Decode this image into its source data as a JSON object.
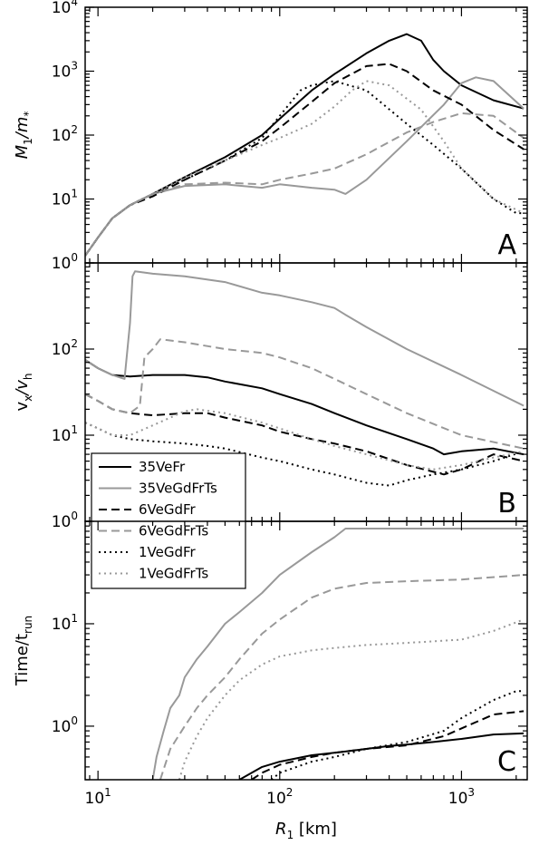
{
  "chart_data": {
    "type": "line",
    "x_scale": "log",
    "xlim": [
      8.5,
      2300
    ],
    "xlabel_main": "R",
    "xlabel_sub": "1",
    "xlabel_unit": "[km]",
    "x_ticks": [
      {
        "value": 10,
        "base": "10",
        "exp": "1"
      },
      {
        "value": 100,
        "base": "10",
        "exp": "2"
      },
      {
        "value": 1000,
        "base": "10",
        "exp": "3"
      }
    ],
    "series_styles": [
      {
        "name": "35VeFr",
        "color": "#000000",
        "dash": "solid"
      },
      {
        "name": "35VeGdFrTs",
        "color": "#999999",
        "dash": "solid"
      },
      {
        "name": "6VeGdFr",
        "color": "#000000",
        "dash": "dashed"
      },
      {
        "name": "6VeGdFrTs",
        "color": "#999999",
        "dash": "dashed"
      },
      {
        "name": "1VeGdFr",
        "color": "#000000",
        "dash": "dotted"
      },
      {
        "name": "1VeGdFrTs",
        "color": "#999999",
        "dash": "dotted"
      }
    ],
    "legend_placement": "bottom-left of panel B",
    "panels": [
      {
        "letter": "A",
        "ylabel_main": "M",
        "ylabel_sub": "1",
        "ylabel_rest": "/m",
        "ylabel_rest_sub": "*",
        "y_scale": "log",
        "ylim": [
          1,
          10000
        ],
        "y_ticks": [
          {
            "value": 1,
            "base": "10",
            "exp": "0"
          },
          {
            "value": 10,
            "base": "10",
            "exp": "1"
          },
          {
            "value": 100,
            "base": "10",
            "exp": "2"
          },
          {
            "value": 1000,
            "base": "10",
            "exp": "3"
          },
          {
            "value": 10000,
            "base": "10",
            "exp": "4"
          }
        ],
        "series": [
          {
            "name": "35VeFr",
            "x": [
              8.5,
              10,
              12,
              15,
              20,
              30,
              50,
              80,
              100,
              150,
              200,
              300,
              400,
              500,
              600,
              700,
              800,
              1000,
              1500,
              2200
            ],
            "y": [
              1.3,
              2.5,
              5,
              8,
              12,
              22,
              45,
              100,
              180,
              500,
              900,
              1900,
              3000,
              3800,
              3000,
              1500,
              1000,
              600,
              350,
              260
            ]
          },
          {
            "name": "35VeGdFrTs",
            "x": [
              8.5,
              10,
              12,
              15,
              20,
              30,
              50,
              80,
              100,
              150,
              200,
              230,
              300,
              500,
              800,
              1000,
              1200,
              1500,
              2200
            ],
            "y": [
              1.3,
              2.5,
              5,
              8,
              12,
              16,
              17,
              15,
              17,
              15,
              14,
              12,
              20,
              80,
              300,
              650,
              800,
              700,
              260
            ]
          },
          {
            "name": "6VeGdFr",
            "x": [
              8.5,
              10,
              12,
              15,
              20,
              30,
              50,
              80,
              100,
              150,
              200,
              300,
              400,
              500,
              700,
              1000,
              1500,
              2200
            ],
            "y": [
              1.3,
              2.5,
              5,
              8,
              11,
              20,
              40,
              80,
              130,
              330,
              650,
              1200,
              1300,
              1000,
              500,
              300,
              120,
              60
            ]
          },
          {
            "name": "6VeGdFrTs",
            "x": [
              8.5,
              10,
              12,
              15,
              20,
              30,
              50,
              80,
              100,
              150,
              200,
              300,
              500,
              700,
              1000,
              1500,
              2200
            ],
            "y": [
              1.3,
              2.5,
              5,
              8,
              12,
              17,
              18,
              17,
              20,
              25,
              30,
              50,
              110,
              160,
              220,
              200,
              90
            ]
          },
          {
            "name": "1VeGdFr",
            "x": [
              8.5,
              10,
              12,
              15,
              20,
              30,
              50,
              80,
              100,
              130,
              150,
              200,
              300,
              500,
              700,
              1000,
              1500,
              2000,
              2200
            ],
            "y": [
              1.3,
              2.5,
              5,
              8,
              12,
              20,
              40,
              90,
              200,
              500,
              600,
              700,
              500,
              150,
              70,
              30,
              10,
              6,
              6
            ]
          },
          {
            "name": "1VeGdFrTs",
            "x": [
              8.5,
              10,
              12,
              15,
              20,
              30,
              50,
              80,
              100,
              150,
              200,
              250,
              300,
              400,
              600,
              800,
              1000,
              1500,
              2200
            ],
            "y": [
              1.3,
              2.5,
              5,
              8,
              12,
              22,
              40,
              70,
              90,
              150,
              280,
              500,
              700,
              600,
              250,
              80,
              30,
              10,
              6
            ]
          }
        ]
      },
      {
        "letter": "B",
        "ylabel_main": "v",
        "ylabel_sub": "x",
        "ylabel_rest": "/v",
        "ylabel_rest_sub": "h",
        "y_scale": "log",
        "ylim": [
          1,
          1000
        ],
        "y_ticks": [
          {
            "value": 1,
            "base": "10",
            "exp": "0"
          },
          {
            "value": 10,
            "base": "10",
            "exp": "1"
          },
          {
            "value": 100,
            "base": "10",
            "exp": "2"
          }
        ],
        "series": [
          {
            "name": "35VeFr",
            "x": [
              8.5,
              10,
              12,
              15,
              20,
              30,
              40,
              50,
              80,
              100,
              150,
              200,
              300,
              500,
              700,
              800,
              1000,
              1500,
              2200
            ],
            "y": [
              75,
              60,
              50,
              48,
              50,
              50,
              47,
              42,
              35,
              30,
              23,
              18,
              13,
              9,
              7,
              6,
              6.5,
              7,
              6
            ]
          },
          {
            "name": "35VeGdFrTs",
            "x": [
              8.5,
              10,
              12,
              14,
              15,
              15.5,
              16,
              20,
              30,
              50,
              80,
              100,
              150,
              200,
              230,
              300,
              500,
              1000,
              2200
            ],
            "y": [
              75,
              60,
              50,
              45,
              200,
              700,
              800,
              750,
              700,
              600,
              450,
              420,
              350,
              300,
              250,
              180,
              100,
              50,
              22
            ]
          },
          {
            "name": "6VeGdFr",
            "x": [
              8.5,
              10,
              12,
              15,
              20,
              30,
              40,
              50,
              80,
              100,
              150,
              200,
              300,
              500,
              800,
              1000,
              1500,
              2200
            ],
            "y": [
              30,
              25,
              20,
              18,
              17,
              18,
              18,
              16,
              13,
              11,
              9,
              8,
              6.5,
              4.5,
              3.5,
              4,
              6,
              5
            ]
          },
          {
            "name": "6VeGdFrTs",
            "x": [
              8.5,
              10,
              12,
              15,
              17,
              18,
              20,
              22,
              30,
              50,
              80,
              100,
              150,
              200,
              300,
              500,
              1000,
              2200
            ],
            "y": [
              30,
              25,
              20,
              18,
              22,
              80,
              100,
              130,
              120,
              100,
              90,
              80,
              60,
              45,
              30,
              18,
              10,
              7
            ]
          },
          {
            "name": "1VeGdFr",
            "x": [
              8.5,
              10,
              12,
              15,
              20,
              30,
              40,
              50,
              80,
              100,
              150,
              200,
              300,
              400,
              500,
              700,
              1000,
              1500,
              2200
            ],
            "y": [
              14,
              12,
              10,
              9,
              8.5,
              8,
              7.5,
              7,
              5.5,
              5,
              4,
              3.5,
              2.8,
              2.6,
              3,
              3.5,
              4,
              5,
              6.5
            ]
          },
          {
            "name": "1VeGdFrTs",
            "x": [
              8.5,
              10,
              12,
              15,
              20,
              30,
              35,
              50,
              80,
              100,
              150,
              200,
              300,
              500,
              700,
              1000,
              1500,
              2200
            ],
            "y": [
              14,
              12,
              10,
              10,
              13,
              19,
              20,
              18,
              14,
              12,
              9,
              7.5,
              6,
              4.5,
              4,
              4.5,
              5.5,
              6.5
            ]
          }
        ]
      },
      {
        "letter": "C",
        "ylabel_main": "Time/t",
        "ylabel_sub": "run",
        "ylabel_rest": "",
        "ylabel_rest_sub": "",
        "y_scale": "log",
        "ylim": [
          0.3,
          100
        ],
        "y_ticks": [
          {
            "value": 1,
            "base": "10",
            "exp": "0"
          },
          {
            "value": 10,
            "base": "10",
            "exp": "1"
          }
        ],
        "series": [
          {
            "name": "35VeFr",
            "x": [
              60,
              80,
              100,
              150,
              200,
              300,
              400,
              500,
              700,
              1000,
              1500,
              2200
            ],
            "y": [
              0.3,
              0.4,
              0.45,
              0.52,
              0.55,
              0.6,
              0.64,
              0.66,
              0.7,
              0.75,
              0.83,
              0.85
            ]
          },
          {
            "name": "35VeGdFrTs",
            "x": [
              20,
              21,
              23,
              25,
              28,
              30,
              35,
              40,
              50,
              60,
              80,
              100,
              150,
              200,
              230,
              300,
              500,
              1000,
              2200
            ],
            "y": [
              0.3,
              0.5,
              0.9,
              1.5,
              2,
              3,
              4.5,
              6,
              10,
              13,
              20,
              30,
              50,
              70,
              85,
              85,
              85,
              85,
              85
            ]
          },
          {
            "name": "6VeGdFr",
            "x": [
              70,
              80,
              100,
              150,
              200,
              300,
              500,
              800,
              1000,
              1500,
              2200
            ],
            "y": [
              0.3,
              0.35,
              0.42,
              0.5,
              0.55,
              0.6,
              0.65,
              0.8,
              0.95,
              1.3,
              1.4
            ]
          },
          {
            "name": "6VeGdFrTs",
            "x": [
              22,
              25,
              30,
              35,
              40,
              50,
              60,
              80,
              100,
              150,
              200,
              300,
              500,
              1000,
              2200
            ],
            "y": [
              0.3,
              0.6,
              1,
              1.5,
              2,
              3,
              4.5,
              8,
              11,
              18,
              22,
              25,
              26,
              27,
              30
            ]
          },
          {
            "name": "1VeGdFr",
            "x": [
              90,
              100,
              150,
              200,
              300,
              500,
              800,
              1000,
              1500,
              2000,
              2200
            ],
            "y": [
              0.3,
              0.35,
              0.45,
              0.5,
              0.6,
              0.7,
              0.9,
              1.2,
              1.8,
              2.2,
              2.2
            ]
          },
          {
            "name": "1VeGdFrTs",
            "x": [
              28,
              30,
              35,
              40,
              50,
              60,
              80,
              100,
              150,
              200,
              300,
              500,
              1000,
              1500,
              2200
            ],
            "y": [
              0.3,
              0.45,
              0.8,
              1.2,
              2,
              2.8,
              4,
              4.8,
              5.5,
              5.8,
              6.2,
              6.5,
              7,
              8.5,
              11
            ]
          }
        ]
      }
    ]
  }
}
